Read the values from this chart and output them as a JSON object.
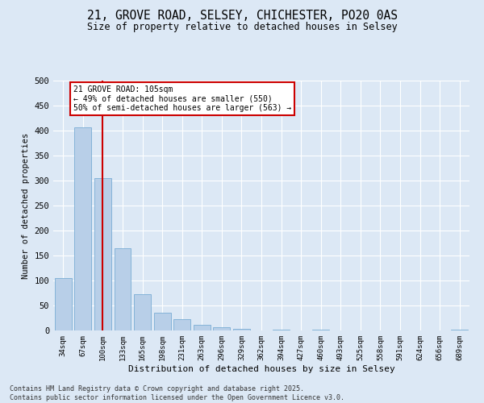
{
  "title_line1": "21, GROVE ROAD, SELSEY, CHICHESTER, PO20 0AS",
  "title_line2": "Size of property relative to detached houses in Selsey",
  "xlabel": "Distribution of detached houses by size in Selsey",
  "ylabel": "Number of detached properties",
  "categories": [
    "34sqm",
    "67sqm",
    "100sqm",
    "133sqm",
    "165sqm",
    "198sqm",
    "231sqm",
    "263sqm",
    "296sqm",
    "329sqm",
    "362sqm",
    "394sqm",
    "427sqm",
    "460sqm",
    "493sqm",
    "525sqm",
    "558sqm",
    "591sqm",
    "624sqm",
    "656sqm",
    "689sqm"
  ],
  "values": [
    105,
    407,
    305,
    165,
    73,
    36,
    22,
    12,
    7,
    3,
    0,
    1,
    0,
    1,
    0,
    0,
    0,
    0,
    0,
    0,
    1
  ],
  "bar_color": "#b8cfe8",
  "bar_edgecolor": "#7aadd4",
  "vline_x": 2,
  "vline_color": "#cc0000",
  "annotation_text": "21 GROVE ROAD: 105sqm\n← 49% of detached houses are smaller (550)\n50% of semi-detached houses are larger (563) →",
  "annotation_box_color": "#cc0000",
  "annotation_bg": "#ffffff",
  "ylim": [
    0,
    500
  ],
  "yticks": [
    0,
    50,
    100,
    150,
    200,
    250,
    300,
    350,
    400,
    450,
    500
  ],
  "footer_line1": "Contains HM Land Registry data © Crown copyright and database right 2025.",
  "footer_line2": "Contains public sector information licensed under the Open Government Licence v3.0.",
  "fig_bg": "#dce8f5",
  "plot_bg": "#dce8f5"
}
